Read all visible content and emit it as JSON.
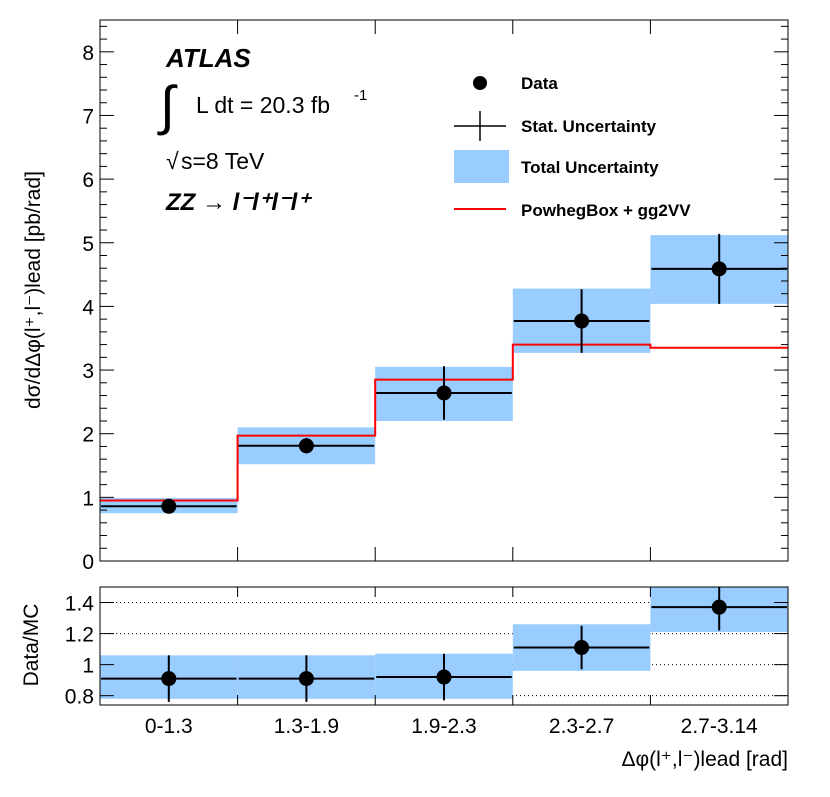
{
  "chart_data": {
    "type": "step-histogram-with-ratio",
    "experiment": "ATLAS",
    "luminosity_label": "L dt = 20.3 fb",
    "luminosity_exponent": "-1",
    "sqrt_label": "s=8 TeV",
    "process_label": "ZZ  →  l⁻l⁺l⁻l⁺",
    "categories": [
      "0-1.3",
      "1.3-1.9",
      "1.9-2.3",
      "2.3-2.7",
      "2.7-3.14"
    ],
    "main": {
      "ylabel": "dσ/dΔφ(l⁺,l⁻)lead [pb/rad]",
      "ylim": [
        0,
        8.5
      ],
      "yticks": [
        0,
        1,
        2,
        3,
        4,
        5,
        6,
        7,
        8
      ],
      "data": [
        0.86,
        1.81,
        2.64,
        3.77,
        4.59
      ],
      "stat_err": [
        0.05,
        0.12,
        0.42,
        0.5,
        0.55
      ],
      "total_unc": [
        [
          0.75,
          0.99
        ],
        [
          1.52,
          2.1
        ],
        [
          2.2,
          3.05
        ],
        [
          3.27,
          4.28
        ],
        [
          4.04,
          5.12
        ]
      ],
      "prediction": [
        0.95,
        1.97,
        2.85,
        3.4,
        3.35
      ]
    },
    "ratio": {
      "ylabel": "Data/MC",
      "ylim": [
        0.74,
        1.5
      ],
      "yticks": [
        0.8,
        1,
        1.2,
        1.4
      ],
      "tick_labels": [
        "0.8",
        "1",
        "1.2",
        "1.4"
      ],
      "data": [
        0.91,
        0.91,
        0.92,
        1.11,
        1.37
      ],
      "stat_err": [
        0.15,
        0.15,
        0.15,
        0.14,
        0.15
      ],
      "total_unc": [
        [
          0.78,
          1.06
        ],
        [
          0.78,
          1.06
        ],
        [
          0.78,
          1.07
        ],
        [
          0.96,
          1.26
        ],
        [
          1.21,
          1.5
        ]
      ]
    },
    "xlabel": "Δφ(l⁺,l⁻)lead [rad]",
    "legend": [
      {
        "key": "data",
        "label": "Data"
      },
      {
        "key": "stat",
        "label": "Stat. Uncertainty"
      },
      {
        "key": "total",
        "label": "Total Uncertainty"
      },
      {
        "key": "pred",
        "label": "PowhegBox + gg2VV"
      }
    ],
    "colors": {
      "band": "#99ccff",
      "prediction": "#ff0000",
      "data": "#000000",
      "grid": "#000000"
    }
  }
}
